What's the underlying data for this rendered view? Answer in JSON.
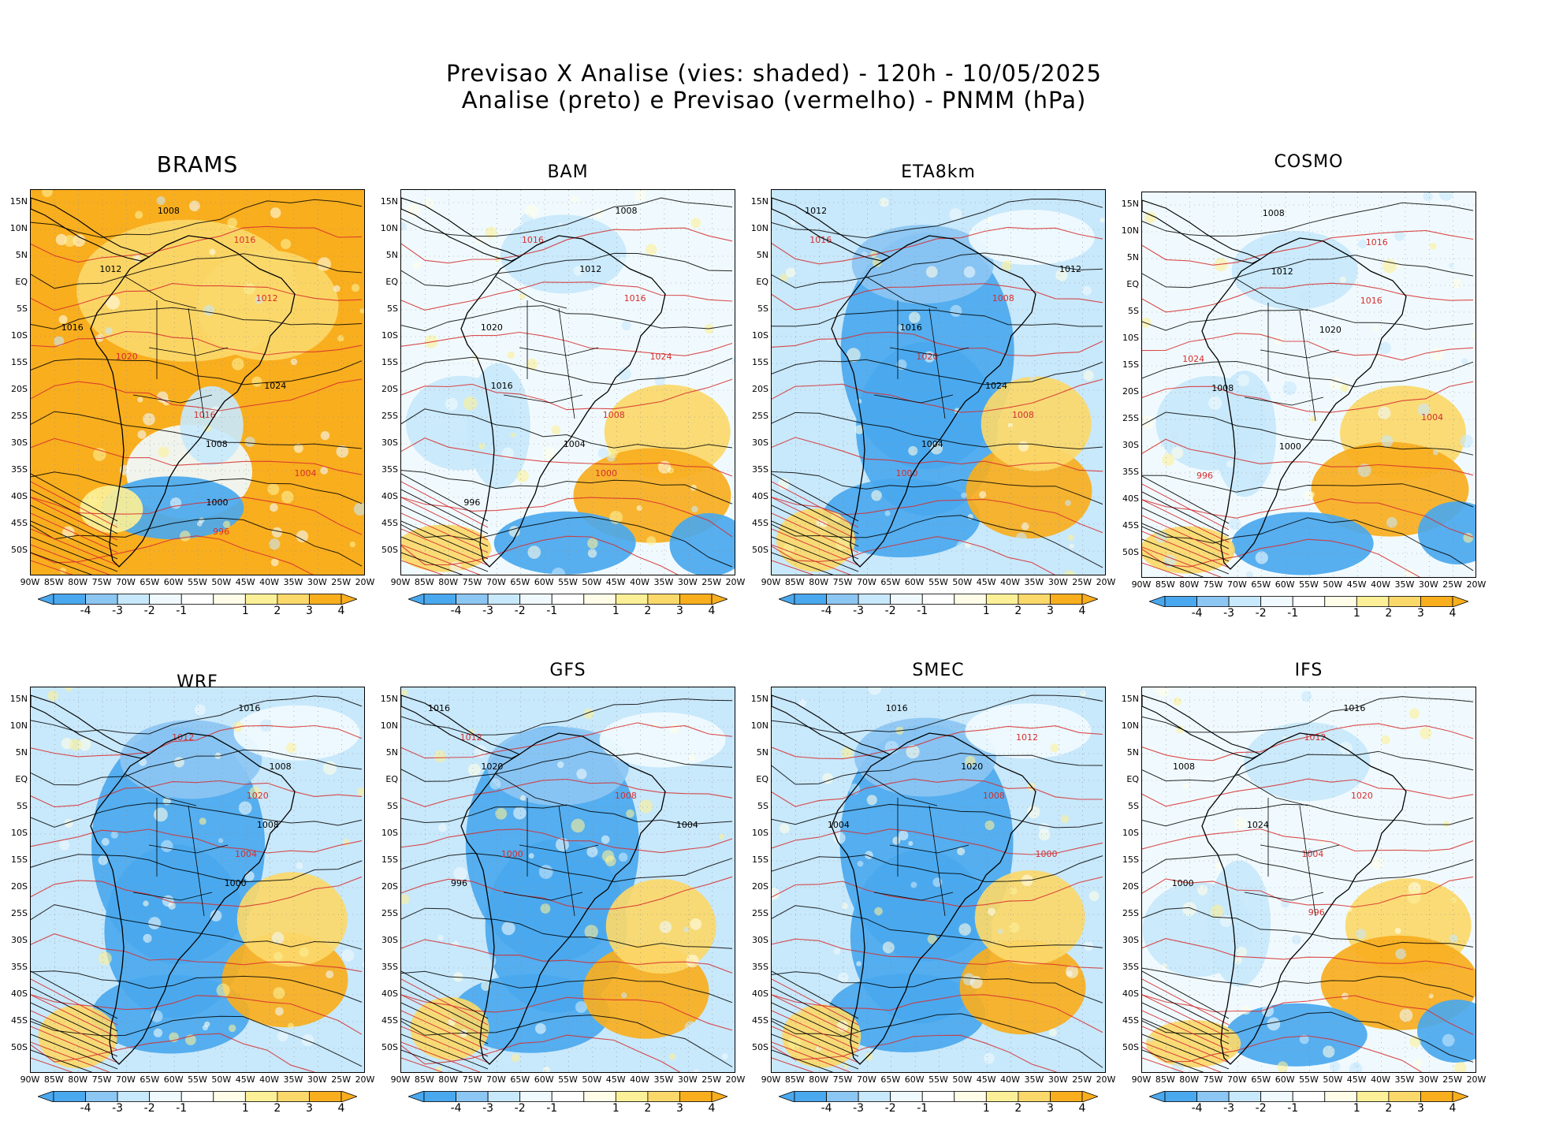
{
  "title": {
    "line1": "Previsao X Analise (vies: shaded) - 120h - 10/05/2025",
    "line2": "Analise (preto) e Previsao (vermelho) - PNMM (hPa)"
  },
  "colors": {
    "c_m4": "#4aa8ee",
    "c_m3": "#8cc6f3",
    "c_m2": "#c8e8fb",
    "c_m1": "#f0fafe",
    "c_1": "#fffde8",
    "c_2": "#fbf097",
    "c_3": "#fbd86a",
    "c_4": "#f9ae1e",
    "analysis_line": "#000000",
    "forecast_line": "#d62d2d"
  },
  "axes": {
    "lat_labels": [
      "15N",
      "10N",
      "5N",
      "EQ",
      "5S",
      "10S",
      "15S",
      "20S",
      "25S",
      "30S",
      "35S",
      "40S",
      "45S",
      "50S"
    ],
    "lon_labels": [
      "90W",
      "85W",
      "80W",
      "75W",
      "70W",
      "65W",
      "60W",
      "55W",
      "50W",
      "45W",
      "40W",
      "35W",
      "30W",
      "25W",
      "20W"
    ]
  },
  "colorbar": {
    "labels": [
      "-4",
      "-3",
      "-2",
      "-1",
      "1",
      "2",
      "3",
      "4"
    ]
  },
  "panels": [
    {
      "name": "BRAMS",
      "bias": "warm",
      "contours": [
        "1008",
        "1016",
        "1012",
        "1012",
        "1016",
        "1020",
        "1024",
        "1016",
        "1008",
        "1004",
        "1000",
        "996"
      ]
    },
    {
      "name": "BAM",
      "bias": "mixed",
      "contours": [
        "1008",
        "1016",
        "1012",
        "1016",
        "1020",
        "1024",
        "1016",
        "1008",
        "1004",
        "1000",
        "996"
      ]
    },
    {
      "name": "ETA8km",
      "bias": "cold",
      "contours": [
        "1012",
        "1016",
        "1012",
        "1008",
        "1016",
        "1020",
        "1024",
        "1008",
        "1004",
        "1000"
      ]
    },
    {
      "name": "COSMO",
      "bias": "mixed",
      "contours": [
        "1008",
        "1016",
        "1012",
        "1016",
        "1020",
        "1024",
        "1008",
        "1004",
        "1000",
        "996"
      ]
    },
    {
      "name": "WRF",
      "bias": "cold",
      "contours": [
        "1016",
        "1012",
        "1008",
        "1020",
        "1008",
        "1004",
        "1000"
      ]
    },
    {
      "name": "GFS",
      "bias": "cold",
      "contours": [
        "1016",
        "1012",
        "1020",
        "1008",
        "1004",
        "1000",
        "996"
      ]
    },
    {
      "name": "SMEC",
      "bias": "cold",
      "contours": [
        "1016",
        "1012",
        "1020",
        "1008",
        "1004",
        "1000"
      ]
    },
    {
      "name": "IFS",
      "bias": "mixed",
      "contours": [
        "1016",
        "1012",
        "1008",
        "1020",
        "1024",
        "1004",
        "1000",
        "996"
      ]
    }
  ]
}
